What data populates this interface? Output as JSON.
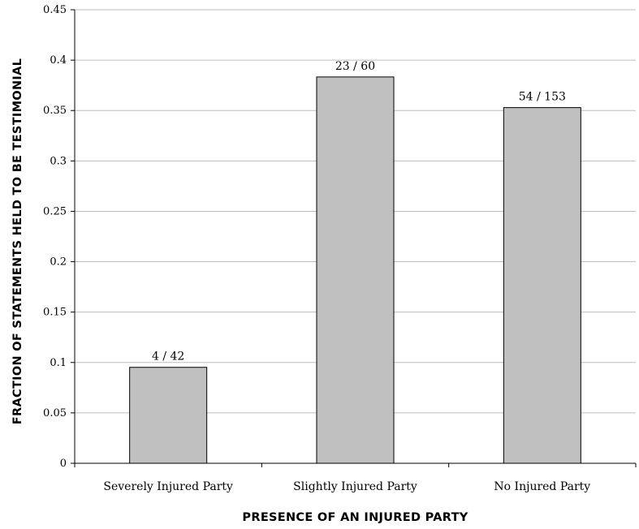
{
  "chart_data": {
    "type": "bar",
    "categories": [
      "Severely Injured Party",
      "Slightly Injured Party",
      "No Injured Party"
    ],
    "values": [
      0.0952,
      0.3833,
      0.3529
    ],
    "data_labels": [
      "4 / 42",
      "23 / 60",
      "54 / 153"
    ],
    "xlabel": "PRESENCE OF AN INJURED PARTY",
    "ylabel": "FRACTION OF STATEMENTS HELD TO BE TESTIMONIAL",
    "ylim": [
      0,
      0.45
    ],
    "yticks": [
      0,
      0.05,
      0.1,
      0.15,
      0.2,
      0.25,
      0.3,
      0.35,
      0.4,
      0.45
    ],
    "ytick_labels": [
      "0",
      "0.05",
      "0.1",
      "0.15",
      "0.2",
      "0.25",
      "0.3",
      "0.35",
      "0.4",
      "0.45"
    ],
    "grid": true,
    "legend": "none",
    "colors": {
      "bar_fill": "#c0c0c0",
      "bar_stroke": "#000000",
      "grid": "#bdbdbd",
      "axis": "#000000"
    }
  }
}
